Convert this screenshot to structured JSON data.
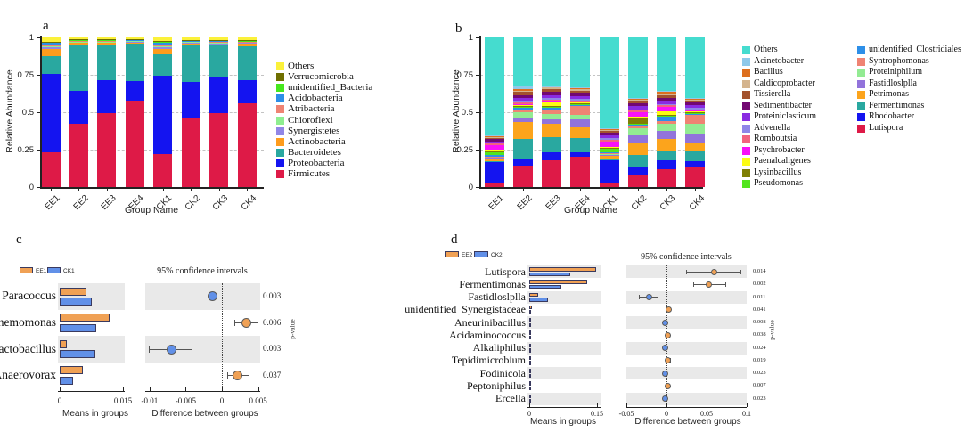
{
  "page": {
    "background": "#ffffff"
  },
  "chart_data": [
    {
      "id": "a",
      "panel_label": "a",
      "type": "bar",
      "stacked": true,
      "xlabel": "Group Name",
      "ylabel": "Relative Abundance",
      "categories": [
        "EE1",
        "EE2",
        "EE3",
        "EE4",
        "CK1",
        "CK2",
        "CK3",
        "CK4"
      ],
      "ylim": [
        0,
        1
      ],
      "ytick_values": [
        0,
        0.25,
        0.5,
        0.75,
        1
      ],
      "ytick_labels": [
        "0",
        "0.25",
        "0.5",
        "0.75",
        "1"
      ],
      "grid": "dashed-horizontal",
      "legend_position": "right",
      "series": [
        {
          "name": "Firmicutes",
          "color": "#DE1A47",
          "values": [
            0.235,
            0.42,
            0.495,
            0.575,
            0.22,
            0.465,
            0.495,
            0.56
          ]
        },
        {
          "name": "Proteobacteria",
          "color": "#1414F0",
          "values": [
            0.52,
            0.22,
            0.22,
            0.135,
            0.525,
            0.24,
            0.235,
            0.155
          ]
        },
        {
          "name": "Bacteroidetes",
          "color": "#29A8A0",
          "values": [
            0.12,
            0.315,
            0.24,
            0.25,
            0.14,
            0.245,
            0.215,
            0.225
          ]
        },
        {
          "name": "Actinobacteria",
          "color": "#FE9C1C",
          "values": [
            0.045,
            0.01,
            0.01,
            0.008,
            0.04,
            0.012,
            0.008,
            0.02
          ]
        },
        {
          "name": "Synergistetes",
          "color": "#9186E6",
          "values": [
            0.015,
            0.005,
            0.005,
            0.005,
            0.012,
            0.005,
            0.005,
            0.005
          ]
        },
        {
          "name": "Chioroflexi",
          "color": "#8FEE90",
          "values": [
            0.005,
            0.003,
            0.003,
            0.003,
            0.005,
            0.003,
            0.01,
            0.003
          ]
        },
        {
          "name": "Atribacteria",
          "color": "#EF8373",
          "values": [
            0.012,
            0.005,
            0.005,
            0.005,
            0.012,
            0.005,
            0.005,
            0.005
          ]
        },
        {
          "name": "Acidobacteria",
          "color": "#2D8FE8",
          "values": [
            0.012,
            0.003,
            0.003,
            0.003,
            0.012,
            0.003,
            0.003,
            0.003
          ]
        },
        {
          "name": "unidentified_Bacteria",
          "color": "#46E81E",
          "values": [
            0.004,
            0.003,
            0.003,
            0.003,
            0.004,
            0.003,
            0.006,
            0.003
          ]
        },
        {
          "name": "Verrucomicrobia",
          "color": "#6F6F00",
          "values": [
            0.004,
            0.003,
            0.003,
            0.003,
            0.004,
            0.003,
            0.003,
            0.003
          ]
        },
        {
          "name": "Others",
          "color": "#FBF13A",
          "values": [
            0.028,
            0.013,
            0.013,
            0.01,
            0.026,
            0.016,
            0.015,
            0.018
          ]
        }
      ]
    },
    {
      "id": "b",
      "panel_label": "b",
      "type": "bar",
      "stacked": true,
      "xlabel": "Group Name",
      "ylabel": "Relative Abundance",
      "categories": [
        "EE1",
        "EE2",
        "EE3",
        "EE4",
        "CK1",
        "CK2",
        "CK3",
        "CK4"
      ],
      "ylim": [
        0,
        1
      ],
      "ytick_values": [
        0,
        0.25,
        0.5,
        0.75,
        1
      ],
      "ytick_labels": [
        "0",
        "0.25",
        "0.5",
        "0.75",
        "1"
      ],
      "grid": "dashed-horizontal",
      "legend_position": "right-two-columns",
      "series": [
        {
          "name": "Lutispora",
          "color": "#DE1A47",
          "values": [
            0.025,
            0.14,
            0.18,
            0.2,
            0.025,
            0.085,
            0.12,
            0.135
          ]
        },
        {
          "name": "Rhodobacter",
          "color": "#1414F0",
          "values": [
            0.14,
            0.045,
            0.05,
            0.03,
            0.155,
            0.045,
            0.06,
            0.035
          ]
        },
        {
          "name": "Fermentimonas",
          "color": "#29A8A0",
          "values": [
            0.01,
            0.135,
            0.105,
            0.095,
            0.01,
            0.085,
            0.065,
            0.07
          ]
        },
        {
          "name": "Petrimonas",
          "color": "#FCA41C",
          "values": [
            0.015,
            0.115,
            0.085,
            0.075,
            0.02,
            0.085,
            0.075,
            0.06
          ]
        },
        {
          "name": "Fastidloslplla",
          "color": "#9273DB",
          "values": [
            0.005,
            0.025,
            0.03,
            0.05,
            0.005,
            0.045,
            0.055,
            0.06
          ]
        },
        {
          "name": "Proteiniphilum",
          "color": "#93EB93",
          "values": [
            0.005,
            0.04,
            0.04,
            0.03,
            0.005,
            0.045,
            0.05,
            0.06
          ]
        },
        {
          "name": "Syntrophomonas",
          "color": "#EF8373",
          "values": [
            0.005,
            0.015,
            0.03,
            0.06,
            0.005,
            0.015,
            0.015,
            0.06
          ]
        },
        {
          "name": "unidentified_Clostridiales",
          "color": "#2D8FE8",
          "values": [
            0.01,
            0.015,
            0.01,
            0.01,
            0.01,
            0.015,
            0.03,
            0.01
          ]
        },
        {
          "name": "Pseudomonas",
          "color": "#52E51E",
          "values": [
            0.02,
            0.005,
            0.005,
            0.005,
            0.02,
            0.005,
            0.005,
            0.005
          ]
        },
        {
          "name": "Lysinbacillus",
          "color": "#7F7F05",
          "values": [
            0.005,
            0.005,
            0.005,
            0.005,
            0.005,
            0.04,
            0.005,
            0.005
          ]
        },
        {
          "name": "Paenalcaligenes",
          "color": "#FCFC13",
          "values": [
            0.01,
            0.005,
            0.025,
            0.005,
            0.005,
            0.005,
            0.025,
            0.005
          ]
        },
        {
          "name": "Psychrobacter",
          "color": "#F811F8",
          "values": [
            0.03,
            0.01,
            0.01,
            0.005,
            0.04,
            0.03,
            0.03,
            0.005
          ]
        },
        {
          "name": "Romboutsia",
          "color": "#F26380",
          "values": [
            0.01,
            0.01,
            0.01,
            0.01,
            0.01,
            0.01,
            0.01,
            0.01
          ]
        },
        {
          "name": "Advenella",
          "color": "#8F86E8",
          "values": [
            0.005,
            0.01,
            0.01,
            0.01,
            0.01,
            0.01,
            0.01,
            0.01
          ]
        },
        {
          "name": "Proteiniclasticum",
          "color": "#8A2BE2",
          "values": [
            0.01,
            0.02,
            0.02,
            0.02,
            0.02,
            0.02,
            0.02,
            0.02
          ]
        },
        {
          "name": "Sedimentibacter",
          "color": "#720872",
          "values": [
            0.015,
            0.02,
            0.02,
            0.02,
            0.02,
            0.02,
            0.02,
            0.02
          ]
        },
        {
          "name": "Tissierella",
          "color": "#A3522D",
          "values": [
            0.01,
            0.02,
            0.02,
            0.015,
            0.01,
            0.015,
            0.02,
            0.01
          ]
        },
        {
          "name": "Caldicoprobacter",
          "color": "#D4B48E",
          "values": [
            0.005,
            0.01,
            0.01,
            0.01,
            0.005,
            0.01,
            0.01,
            0.005
          ]
        },
        {
          "name": "Bacillus",
          "color": "#DD6F1E",
          "values": [
            0.005,
            0.01,
            0.005,
            0.005,
            0.005,
            0.005,
            0.01,
            0.005
          ]
        },
        {
          "name": "Acinetobacter",
          "color": "#8FC9EA",
          "values": [
            0.005,
            0.015,
            0.005,
            0.005,
            0.005,
            0.005,
            0.005,
            0.005
          ]
        },
        {
          "name": "Others",
          "color": "#45DCCF",
          "values": [
            0.66,
            0.33,
            0.325,
            0.335,
            0.61,
            0.405,
            0.36,
            0.405
          ]
        }
      ]
    },
    {
      "id": "c",
      "panel_label": "c",
      "type": "stamp_extended_error_bar",
      "groups": [
        {
          "label": "EE1",
          "color": "#F0A155"
        },
        {
          "label": "CK1",
          "color": "#6190E8"
        }
      ],
      "ci_title": "95% confidence intervals",
      "xlabel_means": "Means in groups",
      "xlabel_diff": "Difference between groups",
      "p_axis_label": "p-value",
      "means_xlim": [
        0,
        0.015
      ],
      "means_ticks": [
        {
          "v": 0,
          "label": "0"
        },
        {
          "v": 0.015,
          "label": "0.015"
        }
      ],
      "diff_xlim": [
        -0.0106,
        0.0053
      ],
      "diff_ticks": [
        {
          "v": -0.01,
          "label": "-0.01"
        },
        {
          "v": -0.005,
          "label": "-0.005"
        },
        {
          "v": 0,
          "label": "0"
        },
        {
          "v": 0.005,
          "label": "0.005"
        }
      ],
      "rows": [
        {
          "taxon": "Paracoccus",
          "means": [
            0.0063,
            0.0076
          ],
          "diff": -0.0013,
          "ci": [
            -0.0019,
            -0.0006
          ],
          "p_value": "0.003",
          "higher_group": "CK1"
        },
        {
          "taxon": "Themomonas",
          "means": [
            0.0118,
            0.0087
          ],
          "diff": 0.0034,
          "ci": [
            0.0017,
            0.005
          ],
          "p_value": "0.006",
          "higher_group": "EE1"
        },
        {
          "taxon": "Lactobacillus",
          "means": [
            0.0017,
            0.0084
          ],
          "diff": -0.007,
          "ci": [
            -0.0101,
            -0.0041
          ],
          "p_value": "0.003",
          "higher_group": "CK1"
        },
        {
          "taxon": "Anaerovorax",
          "means": [
            0.0054,
            0.0031
          ],
          "diff": 0.0021,
          "ci": [
            0.0007,
            0.0038
          ],
          "p_value": "0.037",
          "higher_group": "EE1"
        }
      ]
    },
    {
      "id": "d",
      "panel_label": "d",
      "type": "stamp_extended_error_bar",
      "groups": [
        {
          "label": "EE2",
          "color": "#F0A155"
        },
        {
          "label": "CK2",
          "color": "#6190E8"
        }
      ],
      "ci_title": "95% confidence intervals",
      "xlabel_means": "Means in groups",
      "xlabel_diff": "Difference between groups",
      "p_axis_label": "p-value",
      "means_xlim": [
        0,
        0.15
      ],
      "means_ticks": [
        {
          "v": 0,
          "label": "0"
        },
        {
          "v": 0.15,
          "label": "0.15"
        }
      ],
      "diff_xlim": [
        -0.05,
        0.1
      ],
      "diff_ticks": [
        {
          "v": -0.05,
          "label": "-0.05"
        },
        {
          "v": 0,
          "label": "0"
        },
        {
          "v": 0.05,
          "label": "0.05"
        },
        {
          "v": 0.1,
          "label": "0.1"
        }
      ],
      "rows": [
        {
          "taxon": "Lutispora",
          "means": [
            0.148,
            0.09
          ],
          "diff": 0.059,
          "ci": [
            0.024,
            0.093
          ],
          "p_value": "0.014",
          "higher_group": "EE2"
        },
        {
          "taxon": "Fermentimonas",
          "means": [
            0.128,
            0.072
          ],
          "diff": 0.053,
          "ci": [
            0.033,
            0.074
          ],
          "p_value": "0.002",
          "higher_group": "EE2"
        },
        {
          "taxon": "Fastidloslplla",
          "means": [
            0.02,
            0.042
          ],
          "diff": -0.022,
          "ci": [
            -0.034,
            -0.01
          ],
          "p_value": "0.011",
          "higher_group": "CK2"
        },
        {
          "taxon": "unidentified_Synergistaceae",
          "means": [
            0.005,
            0.001
          ],
          "diff": 0.003,
          "ci": [
            0,
            0.006
          ],
          "p_value": "0.041",
          "higher_group": "EE2"
        },
        {
          "taxon": "Aneurinibacillus",
          "means": [
            0.001,
            0.002
          ],
          "diff": -0.002,
          "ci": [
            -0.004,
            0
          ],
          "p_value": "0.008",
          "higher_group": "CK2"
        },
        {
          "taxon": "Acidaminococcus",
          "means": [
            0.002,
            0.001
          ],
          "diff": 0.002,
          "ci": [
            0,
            0.004
          ],
          "p_value": "0.038",
          "higher_group": "EE2"
        },
        {
          "taxon": "Alkaliphilus",
          "means": [
            0.002,
            0.003
          ],
          "diff": -0.002,
          "ci": [
            -0.005,
            0
          ],
          "p_value": "0.024",
          "higher_group": "CK2"
        },
        {
          "taxon": "Tepidimicrobium",
          "means": [
            0.004,
            0.002
          ],
          "diff": 0.002,
          "ci": [
            -0.001,
            0.005
          ],
          "p_value": "0.019",
          "higher_group": "EE2"
        },
        {
          "taxon": "Fodinicola",
          "means": [
            0.001,
            0.002
          ],
          "diff": -0.002,
          "ci": [
            -0.004,
            0
          ],
          "p_value": "0.023",
          "higher_group": "CK2"
        },
        {
          "taxon": "Peptoniphilus",
          "means": [
            0.002,
            0.001
          ],
          "diff": 0.002,
          "ci": [
            0,
            0.004
          ],
          "p_value": "0.007",
          "higher_group": "EE2"
        },
        {
          "taxon": "Ercella",
          "means": [
            0.001,
            0.002
          ],
          "diff": -0.002,
          "ci": [
            -0.004,
            0.001
          ],
          "p_value": "0.023",
          "higher_group": "CK2"
        }
      ]
    }
  ]
}
